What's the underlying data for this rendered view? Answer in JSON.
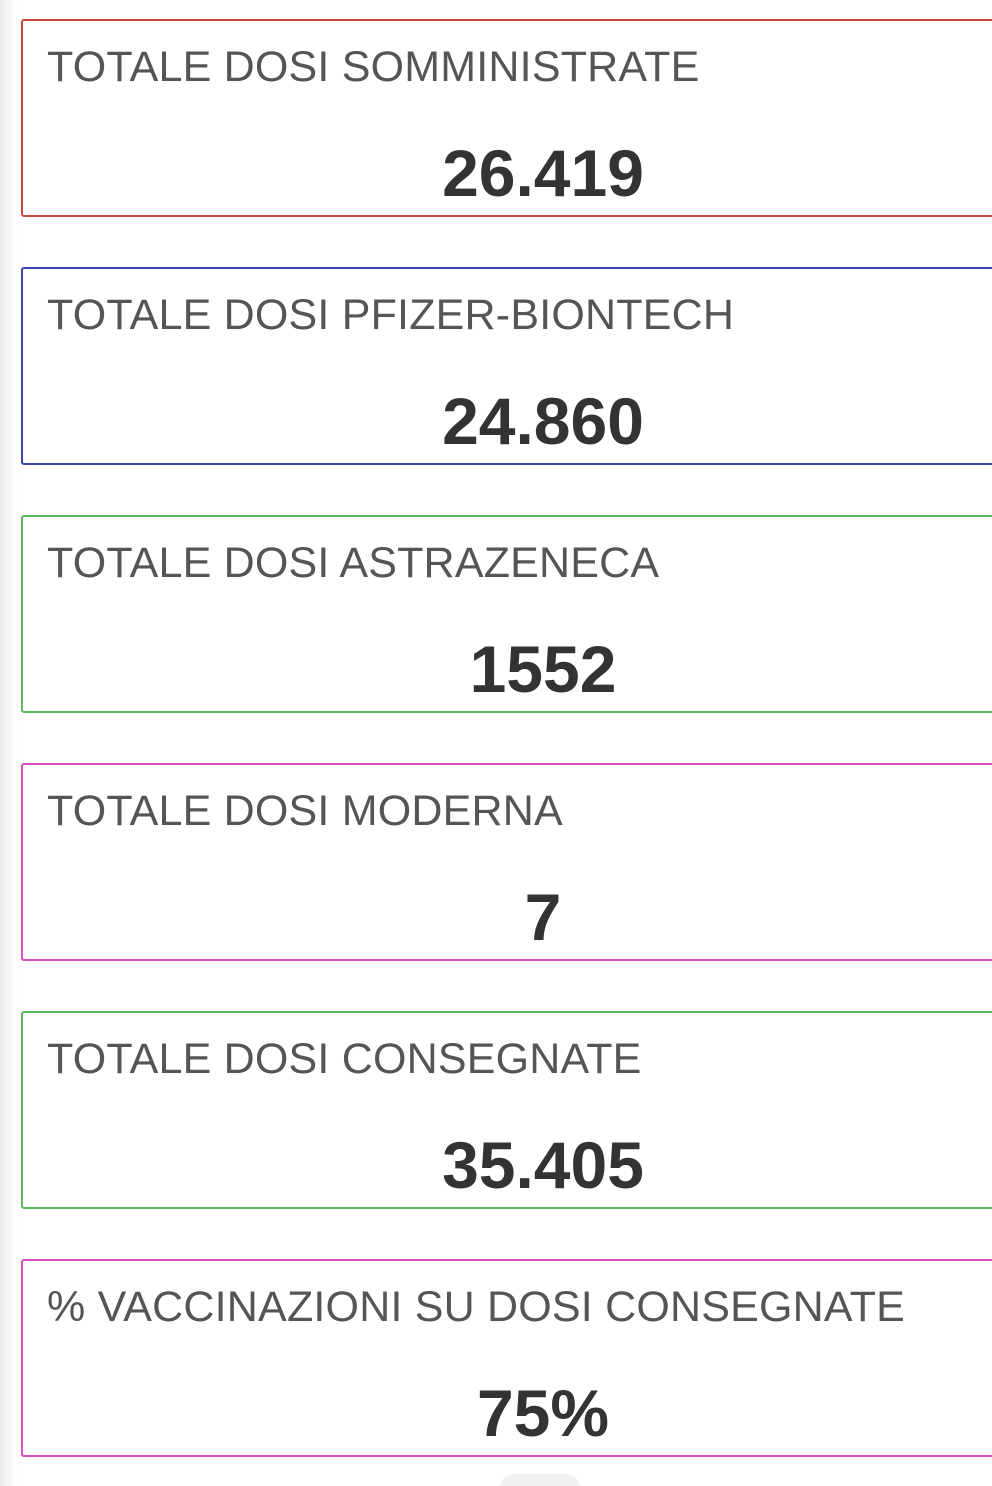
{
  "colors": {
    "red": "#c8493f",
    "blue": "#3a46b0",
    "green": "#5cb85c",
    "magenta": "#d94fc0",
    "label_text": "#555555",
    "value_text": "#333333"
  },
  "cards": [
    {
      "label": "TOTALE DOSI SOMMINISTRATE",
      "value": "26.419",
      "border_color": "#c8493f"
    },
    {
      "label": "TOTALE DOSI PFIZER-BIONTECH",
      "value": "24.860",
      "border_color": "#3a46b0"
    },
    {
      "label": "TOTALE DOSI ASTRAZENECA",
      "value": "1552",
      "border_color": "#5cb85c"
    },
    {
      "label": "TOTALE DOSI MODERNA",
      "value": "7",
      "border_color": "#d94fc0"
    },
    {
      "label": "TOTALE DOSI CONSEGNATE",
      "value": "35.405",
      "border_color": "#5cb85c"
    },
    {
      "label": "% VACCINAZIONI SU DOSI CONSEGNATE",
      "value": "75%",
      "border_color": "#d94fc0"
    }
  ]
}
